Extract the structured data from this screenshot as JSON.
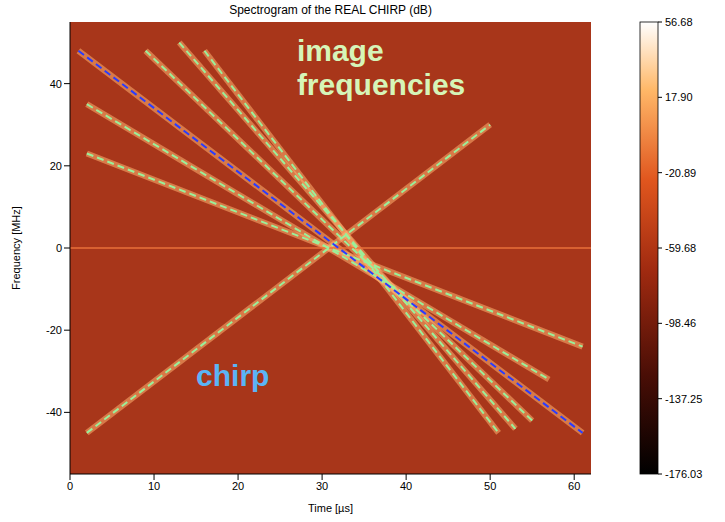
{
  "chart_data": {
    "type": "line",
    "title": "Spectrogram of the REAL CHIRP (dB)",
    "x_label": "Time [µs]",
    "y_label": "Frequency [MHz]",
    "xlim": [
      0,
      62
    ],
    "ylim": [
      -55,
      55
    ],
    "xticks": [
      0,
      10,
      20,
      30,
      40,
      50,
      60
    ],
    "yticks": [
      -40,
      -20,
      0,
      20,
      40
    ],
    "grid": false,
    "annotations": [
      "image frequencies",
      "chirp"
    ],
    "colorbar": {
      "range": [
        -176.03,
        56.68
      ],
      "ticks": [
        -176.03,
        -137.25,
        -98.46,
        -59.68,
        -20.89,
        17.9,
        56.68
      ]
    },
    "series": [
      {
        "x": [
          0,
          62
        ],
        "values": [
          0,
          0
        ],
        "color": "#e8703a",
        "line_style": "solid"
      },
      {
        "x": [
          2,
          61
        ],
        "values": [
          23,
          -24
        ],
        "color": "#9af09a",
        "line_style": "dashed"
      },
      {
        "x": [
          2,
          57
        ],
        "values": [
          35,
          -32
        ],
        "color": "#9af09a",
        "line_style": "dashed"
      },
      {
        "x": [
          9,
          55
        ],
        "values": [
          48,
          -42
        ],
        "color": "#9af09a",
        "line_style": "dashed"
      },
      {
        "x": [
          13,
          53
        ],
        "values": [
          50,
          -44
        ],
        "color": "#9af09a",
        "line_style": "dashed"
      },
      {
        "x": [
          16,
          51
        ],
        "values": [
          48,
          -45
        ],
        "color": "#9af09a",
        "line_style": "dashed"
      },
      {
        "x": [
          2,
          50
        ],
        "values": [
          -45,
          30
        ],
        "color": "#9af09a",
        "line_style": "dashed"
      },
      {
        "x": [
          1,
          61
        ],
        "values": [
          48,
          -45
        ],
        "color": "#2a3cff",
        "line_style": "dashed"
      }
    ]
  }
}
